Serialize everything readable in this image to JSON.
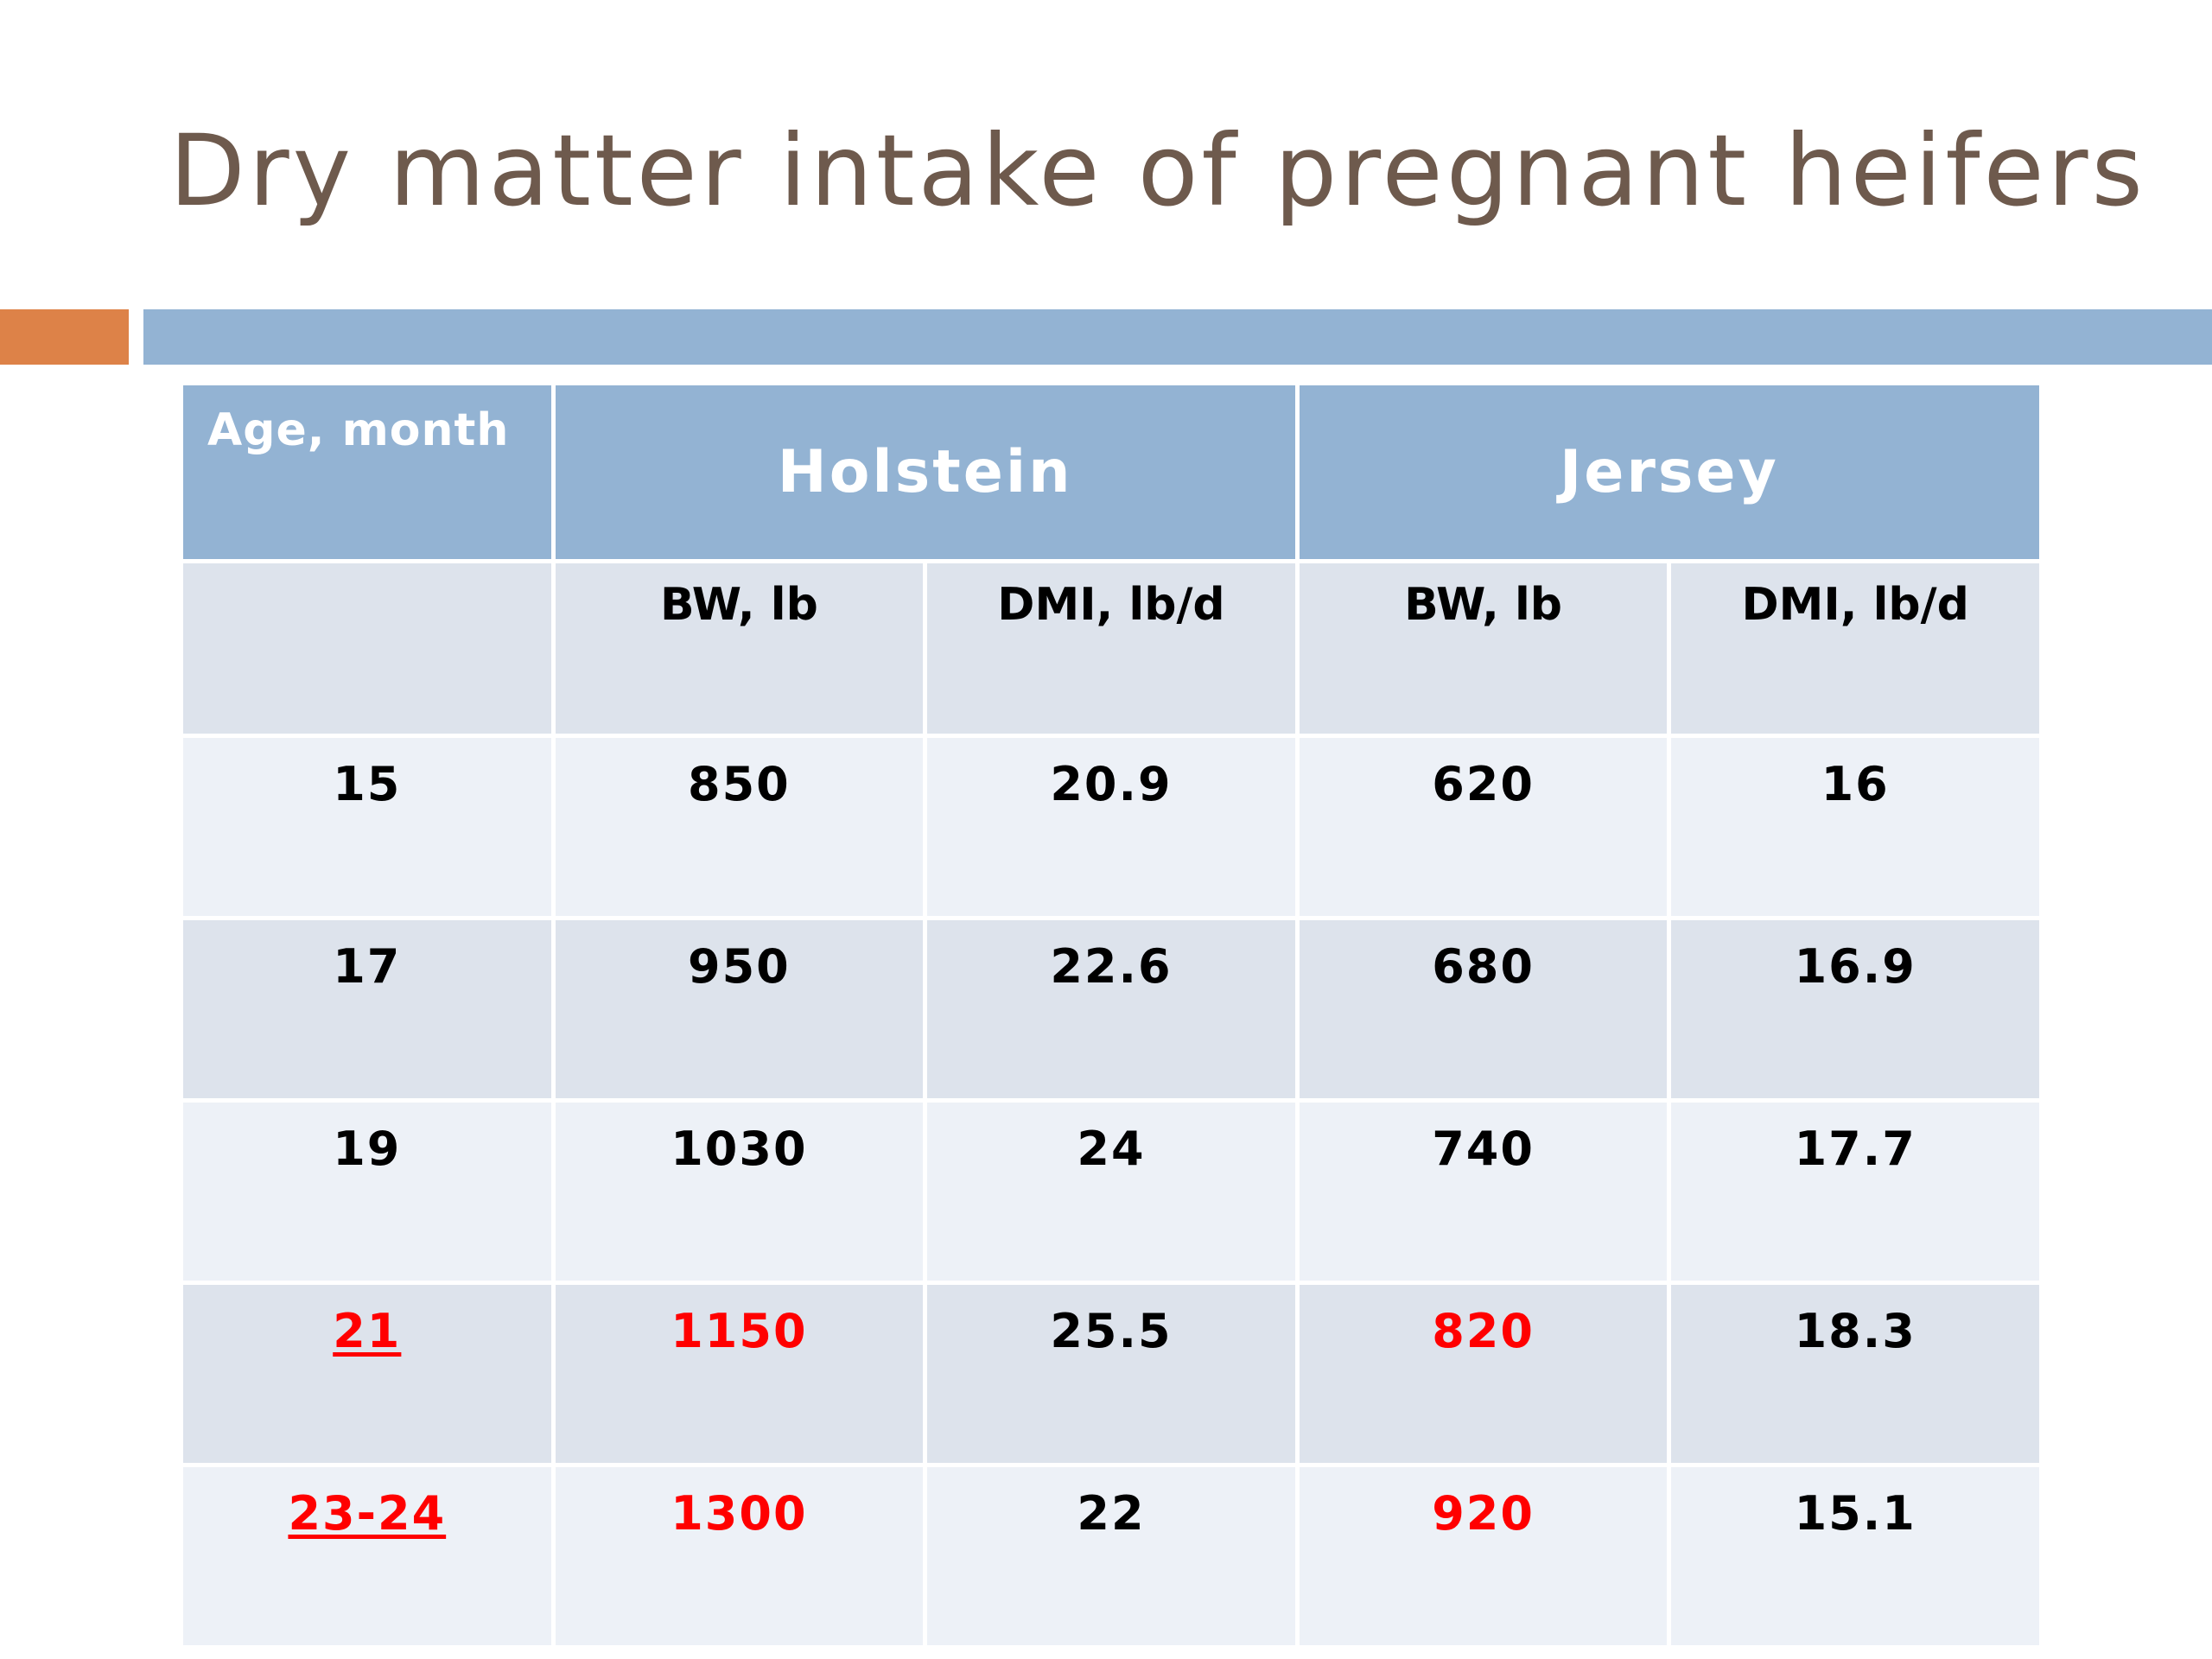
{
  "slide": {
    "title": "Dry matter intake of pregnant heifers"
  },
  "colors": {
    "title": "#6e5a4d",
    "accent": "#dd8248",
    "header_fill": "#93b3d3",
    "row_light": "#edf1f7",
    "row_dark": "#dde3ec",
    "highlight_text": "#ff0000"
  },
  "table": {
    "header": {
      "age": "Age, month",
      "holstein": "Holstein",
      "jersey": "Jersey"
    },
    "subheader": {
      "age": "",
      "holstein_bw": "BW, lb",
      "holstein_dmi": "DMI, lb/d",
      "jersey_bw": "BW, lb",
      "jersey_dmi": "DMI, lb/d"
    },
    "rows": [
      {
        "age": "15",
        "holstein_bw": "850",
        "holstein_dmi": "20.9",
        "jersey_bw": "620",
        "jersey_dmi": "16"
      },
      {
        "age": "17",
        "holstein_bw": "950",
        "holstein_dmi": "22.6",
        "jersey_bw": "680",
        "jersey_dmi": "16.9"
      },
      {
        "age": "19",
        "holstein_bw": "1030",
        "holstein_dmi": "24",
        "jersey_bw": "740",
        "jersey_dmi": "17.7"
      },
      {
        "age": "21",
        "holstein_bw": "1150",
        "holstein_dmi": "25.5",
        "jersey_bw": "820",
        "jersey_dmi": "18.3"
      },
      {
        "age": "23-24",
        "holstein_bw": "1300",
        "holstein_dmi": "22",
        "jersey_bw": "920",
        "jersey_dmi": "15.1"
      }
    ]
  }
}
